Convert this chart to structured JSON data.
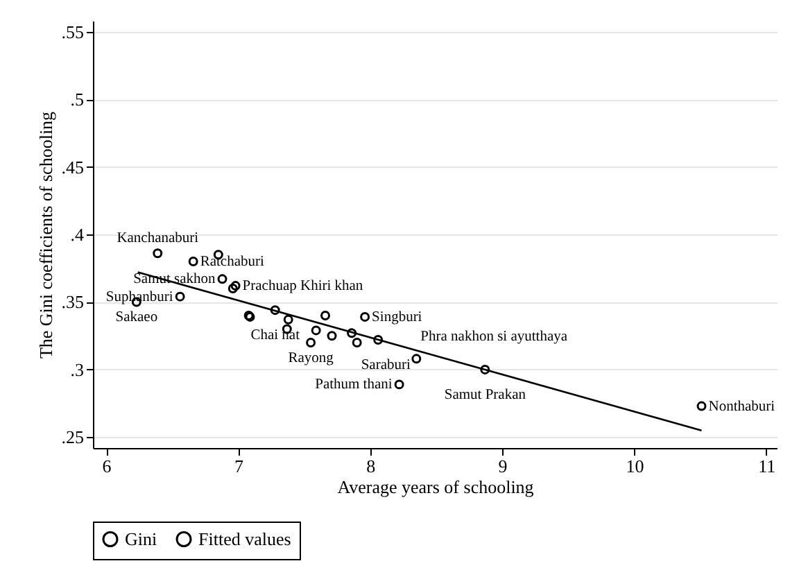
{
  "chart_data": {
    "type": "scatter",
    "xlabel": "Average years of schooling",
    "ylabel": "The Gini coefficients of schooling",
    "xlim": [
      5.9,
      11.08
    ],
    "xticks": [
      6,
      7,
      8,
      9,
      10,
      11
    ],
    "ylim": [
      0.242,
      0.558
    ],
    "yticks": [
      {
        "value": 0.25,
        "label": ".25"
      },
      {
        "value": 0.3,
        "label": ".3"
      },
      {
        "value": 0.35,
        "label": ".35"
      },
      {
        "value": 0.4,
        "label": ".4"
      },
      {
        "value": 0.45,
        "label": ".45"
      },
      {
        "value": 0.5,
        "label": ".5"
      },
      {
        "value": 0.55,
        "label": ".55"
      }
    ],
    "grid": "y",
    "legend": "bottom",
    "marker": "circle",
    "series": [
      {
        "name": "Gini",
        "type": "scatter",
        "color": "#000000",
        "x": [
          6.23,
          6.56,
          6.39,
          6.66,
          6.85,
          6.88,
          6.98,
          6.96,
          7.08,
          7.09,
          7.28,
          7.37,
          7.38,
          7.55,
          7.59,
          7.66,
          7.71,
          7.96,
          7.86,
          7.9,
          8.06,
          8.35,
          8.87,
          8.22,
          10.51
        ],
        "values": [
          0.35,
          0.354,
          0.386,
          0.38,
          0.385,
          0.367,
          0.362,
          0.36,
          0.34,
          0.339,
          0.344,
          0.33,
          0.337,
          0.32,
          0.329,
          0.34,
          0.325,
          0.339,
          0.327,
          0.32,
          0.322,
          0.308,
          0.3,
          0.289,
          0.273
        ]
      },
      {
        "name": "Fitted values",
        "type": "line",
        "color": "#000000",
        "marker": "none",
        "x": [
          6.24,
          10.51
        ],
        "values": [
          0.372,
          0.255
        ]
      }
    ],
    "annotations": [
      {
        "text": "Sakaeo",
        "x": 6.23,
        "y": 0.35
      },
      {
        "text": "Suphanburi",
        "x": 6.56,
        "y": 0.354
      },
      {
        "text": "Kanchanaburi",
        "x": 6.39,
        "y": 0.386
      },
      {
        "text": "Ratchaburi",
        "x": 6.66,
        "y": 0.38
      },
      {
        "text": "Samut sakhon",
        "x": 6.88,
        "y": 0.367
      },
      {
        "text": "Prachuap Khiri khan",
        "x": 6.98,
        "y": 0.362
      },
      {
        "text": "Chai nat",
        "x": 7.28,
        "y": 0.344
      },
      {
        "text": "Rayong",
        "x": 7.55,
        "y": 0.32
      },
      {
        "text": "Singburi",
        "x": 7.96,
        "y": 0.339
      },
      {
        "text": "Saraburi",
        "x": 7.9,
        "y": 0.32
      },
      {
        "text": "Phra nakhon si ayutthaya",
        "x": 8.35,
        "y": 0.308
      },
      {
        "text": "Samut Prakan",
        "x": 8.87,
        "y": 0.3
      },
      {
        "text": "Pathum thani",
        "x": 8.22,
        "y": 0.289
      },
      {
        "text": "Nonthaburi",
        "x": 10.51,
        "y": 0.273
      }
    ]
  }
}
